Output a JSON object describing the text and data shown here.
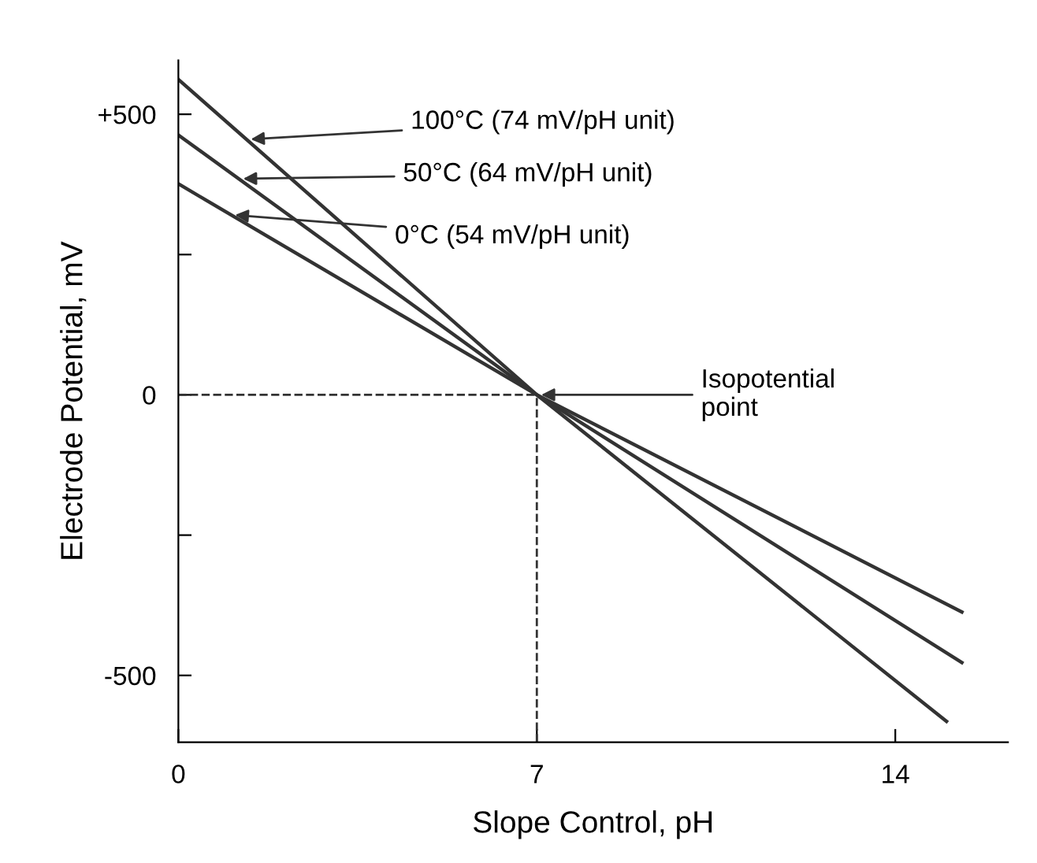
{
  "chart_data": {
    "type": "line",
    "xlabel": "Slope Control, pH",
    "ylabel": "Electrode Potential, mV",
    "xlim": [
      0,
      16.2
    ],
    "ylim": [
      -619,
      596
    ],
    "xticks": [
      0,
      7,
      14
    ],
    "yticks": [
      {
        "value": 500,
        "label": "+500"
      },
      {
        "value": 250,
        "label": null
      },
      0,
      {
        "value": -250,
        "label": null
      },
      -500
    ],
    "grid": false,
    "legend": false,
    "marker": "none",
    "line_style": "solid",
    "series": [
      {
        "color": "#333333",
        "x": [
          0,
          7,
          15.0
        ],
        "values": [
          562,
          0,
          -582
        ]
      },
      {
        "color": "#333333",
        "x": [
          0,
          7,
          15.3
        ],
        "values": [
          463,
          0,
          -477
        ]
      },
      {
        "color": "#333333",
        "x": [
          0,
          7,
          15.3
        ],
        "values": [
          376,
          0,
          -387
        ]
      }
    ],
    "ref_lines": [
      {
        "axis": "y",
        "value": 0,
        "color": "#333333",
        "line_style": "dashed"
      },
      {
        "axis": "x",
        "value": 7,
        "color": "#333333",
        "line_style": "dashed"
      }
    ],
    "annotations": [
      {
        "text": "100°C (74 mV/pH unit)",
        "x": 1.33,
        "y": 455
      },
      {
        "text": "50°C (64 mV/pH unit)",
        "x": 1.18,
        "y": 385
      },
      {
        "text": "0°C (54 mV/pH unit)",
        "x": 1.02,
        "y": 321
      },
      {
        "text": "Isopotential\npoint",
        "x": 7,
        "y": 0
      }
    ]
  }
}
